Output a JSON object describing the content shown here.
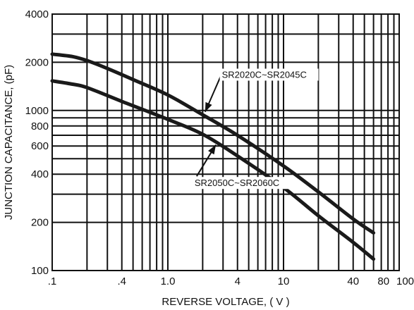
{
  "chart_data": {
    "type": "line",
    "xlabel": "REVERSE VOLTAGE, ( V )",
    "ylabel": "JUNCTION CAPACITANCE, (pF)",
    "x_scale": "log",
    "y_scale": "log",
    "xlim": [
      0.1,
      100
    ],
    "ylim": [
      100,
      4000
    ],
    "x_ticks": [
      {
        "value": 0.1,
        "label": ".1"
      },
      {
        "value": 0.4,
        "label": ".4"
      },
      {
        "value": 1.0,
        "label": "1.0"
      },
      {
        "value": 4,
        "label": "4"
      },
      {
        "value": 10,
        "label": "10"
      },
      {
        "value": 40,
        "label": "40"
      },
      {
        "value": 80,
        "label": "80"
      },
      {
        "value": 100,
        "label": "100"
      }
    ],
    "y_ticks": [
      {
        "value": 100,
        "label": "100"
      },
      {
        "value": 200,
        "label": "200"
      },
      {
        "value": 400,
        "label": "400"
      },
      {
        "value": 600,
        "label": "600"
      },
      {
        "value": 800,
        "label": "800"
      },
      {
        "value": 1000,
        "label": "1000"
      },
      {
        "value": 2000,
        "label": "2000"
      },
      {
        "value": 4000,
        "label": "4000"
      }
    ],
    "x_grid": [
      0.1,
      0.2,
      0.3,
      0.4,
      0.5,
      0.6,
      0.7,
      0.8,
      0.9,
      1,
      2,
      3,
      4,
      5,
      6,
      7,
      8,
      9,
      10,
      20,
      30,
      40,
      50,
      60,
      70,
      80,
      90,
      100
    ],
    "y_grid": [
      100,
      200,
      300,
      400,
      500,
      600,
      700,
      800,
      900,
      1000,
      2000,
      3000,
      4000
    ],
    "grid": true,
    "series": [
      {
        "color": "#1a1a1a",
        "points": [
          [
            0.1,
            2250
          ],
          [
            0.15,
            2170
          ],
          [
            0.2,
            2050
          ],
          [
            0.3,
            1830
          ],
          [
            0.5,
            1560
          ],
          [
            1,
            1250
          ],
          [
            2,
            940
          ],
          [
            4,
            700
          ],
          [
            10,
            450
          ],
          [
            20,
            310
          ],
          [
            40,
            210
          ],
          [
            60,
            172
          ]
        ]
      },
      {
        "color": "#1a1a1a",
        "points": [
          [
            0.1,
            1530
          ],
          [
            0.15,
            1460
          ],
          [
            0.2,
            1390
          ],
          [
            0.4,
            1140
          ],
          [
            1,
            880
          ],
          [
            2,
            710
          ],
          [
            4,
            520
          ],
          [
            10,
            330
          ],
          [
            20,
            220
          ],
          [
            40,
            150
          ],
          [
            60,
            118
          ]
        ]
      }
    ],
    "annotations": [
      {
        "label": "SR2020C~SR2045C",
        "point": [
          2.1,
          980
        ],
        "anchor": [
          3.1,
          1900
        ]
      },
      {
        "label": "SR2050C~SR2060C",
        "point": [
          2.6,
          610
        ],
        "anchor": [
          1.8,
          330
        ]
      }
    ]
  }
}
